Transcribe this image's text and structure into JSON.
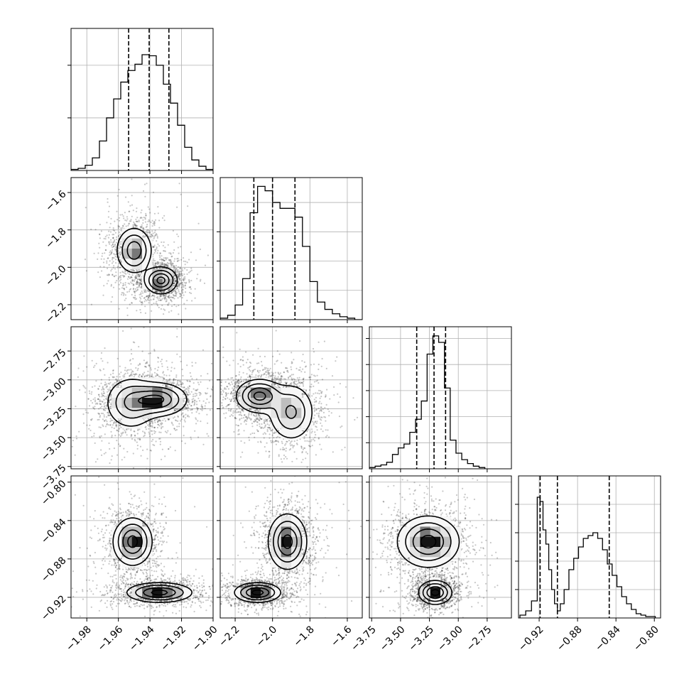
{
  "chart_data": {
    "type": "corner",
    "grid": true,
    "parameters": [
      {
        "name": "",
        "range": [
          -1.99,
          -1.9
        ],
        "ticks": [
          -1.98,
          -1.96,
          -1.94,
          -1.92,
          -1.9
        ],
        "tick_labels": [
          "−1.98",
          "−1.96",
          "−1.94",
          "−1.92",
          "−1.90"
        ],
        "quantiles": [
          -1.9535,
          -1.9405,
          -1.928
        ]
      },
      {
        "name": "",
        "range": [
          -2.28,
          -1.52
        ],
        "ticks": [
          -2.2,
          -2.0,
          -1.8,
          -1.6
        ],
        "tick_labels": [
          "−2.2",
          "−2.0",
          "−1.8",
          "−1.6"
        ],
        "quantiles": [
          -2.1,
          -2.0,
          -1.88
        ]
      },
      {
        "name": "",
        "range": [
          -3.77,
          -2.54
        ],
        "ticks": [
          -3.75,
          -3.5,
          -3.25,
          -3.0,
          -2.75
        ],
        "tick_labels": [
          "−3.75",
          "−3.50",
          "−3.25",
          "−3.00",
          "−2.75"
        ],
        "quantiles": [
          -3.36,
          -3.21,
          -3.11
        ]
      },
      {
        "name": "",
        "range": [
          -0.9415,
          -0.7935
        ],
        "ticks": [
          -0.92,
          -0.88,
          -0.84,
          -0.8
        ],
        "tick_labels": [
          "−0.92",
          "−0.88",
          "−0.84",
          "−0.80"
        ],
        "quantiles": [
          -0.919,
          -0.901,
          -0.847
        ]
      }
    ],
    "histograms": [
      {
        "parameter": 0,
        "bins": [
          -1.99,
          -1.9855,
          -1.981,
          -1.9765,
          -1.972,
          -1.9675,
          -1.963,
          -1.9585,
          -1.954,
          -1.9495,
          -1.945,
          -1.9405,
          -1.936,
          -1.9315,
          -1.927,
          -1.9225,
          -1.918,
          -1.9135,
          -1.909,
          -1.9045,
          -1.9
        ],
        "counts": [
          1,
          2,
          5,
          12,
          28,
          50,
          68,
          84,
          95,
          101,
          110,
          109,
          100,
          82,
          64,
          43,
          22,
          10,
          4,
          1
        ],
        "ymax": 135,
        "yticks": [
          50,
          100
        ]
      },
      {
        "parameter": 1,
        "bins": [
          -2.28,
          -2.24,
          -2.2,
          -2.16,
          -2.12,
          -2.08,
          -2.04,
          -2.0,
          -1.96,
          -1.92,
          -1.88,
          -1.84,
          -1.8,
          -1.76,
          -1.72,
          -1.68,
          -1.64,
          -1.6,
          -1.56,
          -1.52
        ],
        "counts": [
          1,
          3,
          10,
          28,
          73,
          91,
          88,
          80,
          76,
          76,
          70,
          50,
          26,
          12,
          7,
          4,
          2,
          1,
          0
        ],
        "ymax": 97,
        "yticks": [
          20,
          40,
          60,
          80
        ]
      },
      {
        "parameter": 2,
        "bins": [
          -3.77,
          -3.72,
          -3.67,
          -3.62,
          -3.57,
          -3.52,
          -3.47,
          -3.42,
          -3.37,
          -3.32,
          -3.27,
          -3.22,
          -3.17,
          -3.12,
          -3.07,
          -3.02,
          -2.97,
          -2.92,
          -2.87,
          -2.82,
          -2.77
        ],
        "counts": [
          1,
          2,
          3,
          5,
          11,
          16,
          19,
          28,
          38,
          52,
          88,
          102,
          97,
          62,
          22,
          12,
          7,
          4,
          2,
          1
        ],
        "ymax": 109,
        "yticks": [
          20,
          40,
          60,
          80,
          100
        ]
      },
      {
        "parameter": 3,
        "bins": [
          -0.94,
          -0.934,
          -0.928,
          -0.922,
          -0.919,
          -0.916,
          -0.913,
          -0.91,
          -0.907,
          -0.904,
          -0.901,
          -0.898,
          -0.894,
          -0.889,
          -0.884,
          -0.879,
          -0.874,
          -0.869,
          -0.864,
          -0.859,
          -0.854,
          -0.849,
          -0.844,
          -0.839,
          -0.834,
          -0.829,
          -0.824,
          -0.819,
          -0.814,
          -0.809,
          -0.804,
          -0.799
        ],
        "counts": [
          2,
          5,
          12,
          85,
          82,
          62,
          52,
          34,
          20,
          10,
          5,
          10,
          20,
          34,
          42,
          50,
          56,
          58,
          60,
          56,
          48,
          38,
          30,
          22,
          15,
          10,
          6,
          3,
          2,
          1,
          1
        ],
        "ymax": 100,
        "yticks": [
          20,
          40,
          60,
          80
        ]
      }
    ],
    "pair_plots": [
      {
        "x_param": 0,
        "y_param": 1,
        "modes": [
          {
            "x": -1.95,
            "y": -1.91,
            "sx": 0.0055,
            "sy": 0.06,
            "w": 0.45
          },
          {
            "x": -1.933,
            "y": -2.07,
            "sx": 0.005,
            "sy": 0.035,
            "w": 0.55
          }
        ],
        "contour_levels": 4
      },
      {
        "x_param": 0,
        "y_param": 2,
        "modes": [
          {
            "x": -1.935,
            "y": -3.17,
            "sx": 0.009,
            "sy": 0.07,
            "w": 0.6
          },
          {
            "x": -1.952,
            "y": -3.2,
            "sx": 0.008,
            "sy": 0.11,
            "w": 0.4
          }
        ],
        "contour_levels": 4
      },
      {
        "x_param": 1,
        "y_param": 2,
        "modes": [
          {
            "x": -2.07,
            "y": -3.14,
            "sx": 0.06,
            "sy": 0.07,
            "w": 0.6
          },
          {
            "x": -1.9,
            "y": -3.28,
            "sx": 0.06,
            "sy": 0.12,
            "w": 0.4
          }
        ],
        "contour_levels": 4
      },
      {
        "x_param": 0,
        "y_param": 3,
        "modes": [
          {
            "x": -1.951,
            "y": -0.862,
            "sx": 0.006,
            "sy": 0.012,
            "w": 0.5
          },
          {
            "x": -1.934,
            "y": -0.915,
            "sx": 0.01,
            "sy": 0.005,
            "w": 0.5
          }
        ],
        "contour_levels": 4
      },
      {
        "x_param": 1,
        "y_param": 3,
        "modes": [
          {
            "x": -1.92,
            "y": -0.862,
            "sx": 0.05,
            "sy": 0.014,
            "w": 0.5
          },
          {
            "x": -2.08,
            "y": -0.915,
            "sx": 0.06,
            "sy": 0.005,
            "w": 0.5
          }
        ],
        "contour_levels": 4
      },
      {
        "x_param": 2,
        "y_param": 3,
        "modes": [
          {
            "x": -3.26,
            "y": -0.862,
            "sx": 0.13,
            "sy": 0.013,
            "w": 0.5
          },
          {
            "x": -3.2,
            "y": -0.915,
            "sx": 0.07,
            "sy": 0.006,
            "w": 0.5
          }
        ],
        "contour_levels": 4
      }
    ]
  }
}
